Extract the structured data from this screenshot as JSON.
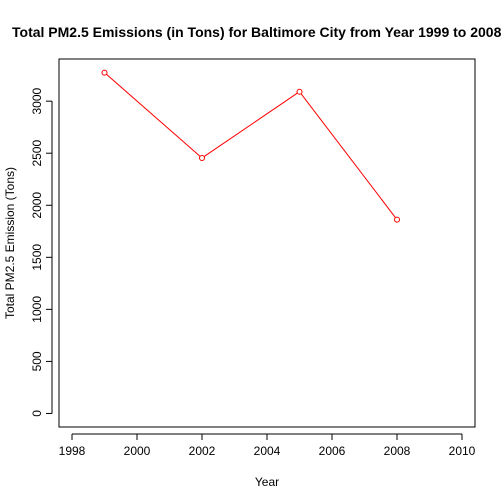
{
  "chart_data": {
    "type": "line",
    "title": "Total PM2.5 Emissions (in Tons) for Baltimore City from Year 1999 to 2008",
    "xlabel": "Year",
    "ylabel": "Total PM2.5 Emission (Tons)",
    "x": [
      1999,
      2002,
      2005,
      2008
    ],
    "series": [
      {
        "values": [
          3274,
          2454,
          3091,
          1862
        ],
        "color": "#ff0000"
      }
    ],
    "xlim": [
      1997.6,
      2010.4
    ],
    "ylim": [
      -130,
      3405
    ],
    "xticks": [
      1998,
      2000,
      2002,
      2004,
      2006,
      2008,
      2010
    ],
    "yticks": [
      0,
      500,
      1000,
      1500,
      2000,
      2500,
      3000
    ],
    "grid": false,
    "marker": "open-circle"
  }
}
